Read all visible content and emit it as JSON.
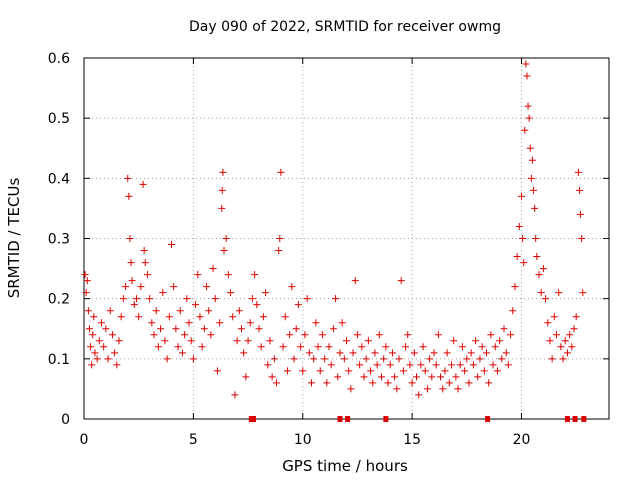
{
  "chart_data": {
    "type": "scatter",
    "title": "Day 090 of 2022, SRMTID for receiver owmg",
    "xlabel": "GPS time / hours",
    "ylabel": "SRMTID / TECUs",
    "xlim": [
      0,
      24
    ],
    "ylim": [
      0,
      0.6
    ],
    "xticks": [
      0,
      5,
      10,
      15,
      20
    ],
    "xtick_labels": [
      "0",
      "5",
      "10",
      "15",
      "20"
    ],
    "yticks": [
      0,
      0.1,
      0.2,
      0.3,
      0.4,
      0.5,
      0.6
    ],
    "ytick_labels": [
      "0",
      "0.1",
      "0.2",
      "0.3",
      "0.4",
      "0.5",
      "0.6"
    ],
    "grid": true,
    "marker": "+",
    "color": "#dd0000",
    "series": [
      {
        "name": "SRMTID",
        "points": [
          [
            0.05,
            0.24
          ],
          [
            0.1,
            0.21
          ],
          [
            0.15,
            0.23
          ],
          [
            0.2,
            0.18
          ],
          [
            0.25,
            0.15
          ],
          [
            0.3,
            0.12
          ],
          [
            0.35,
            0.09
          ],
          [
            0.4,
            0.14
          ],
          [
            0.45,
            0.17
          ],
          [
            0.5,
            0.11
          ],
          [
            0.6,
            0.1
          ],
          [
            0.7,
            0.13
          ],
          [
            0.8,
            0.16
          ],
          [
            0.9,
            0.12
          ],
          [
            1.0,
            0.15
          ],
          [
            1.1,
            0.1
          ],
          [
            1.2,
            0.18
          ],
          [
            1.3,
            0.14
          ],
          [
            1.4,
            0.11
          ],
          [
            1.5,
            0.09
          ],
          [
            1.6,
            0.13
          ],
          [
            1.7,
            0.17
          ],
          [
            1.8,
            0.2
          ],
          [
            1.9,
            0.22
          ],
          [
            2.0,
            0.4
          ],
          [
            2.05,
            0.37
          ],
          [
            2.1,
            0.3
          ],
          [
            2.15,
            0.26
          ],
          [
            2.2,
            0.23
          ],
          [
            2.3,
            0.19
          ],
          [
            2.4,
            0.2
          ],
          [
            2.5,
            0.17
          ],
          [
            2.6,
            0.22
          ],
          [
            2.7,
            0.39
          ],
          [
            2.75,
            0.28
          ],
          [
            2.8,
            0.26
          ],
          [
            2.9,
            0.24
          ],
          [
            3.0,
            0.2
          ],
          [
            3.1,
            0.16
          ],
          [
            3.2,
            0.14
          ],
          [
            3.3,
            0.18
          ],
          [
            3.4,
            0.12
          ],
          [
            3.5,
            0.15
          ],
          [
            3.6,
            0.21
          ],
          [
            3.7,
            0.13
          ],
          [
            3.8,
            0.1
          ],
          [
            3.9,
            0.17
          ],
          [
            4.0,
            0.29
          ],
          [
            4.1,
            0.22
          ],
          [
            4.2,
            0.15
          ],
          [
            4.3,
            0.12
          ],
          [
            4.4,
            0.18
          ],
          [
            4.5,
            0.11
          ],
          [
            4.6,
            0.14
          ],
          [
            4.7,
            0.2
          ],
          [
            4.8,
            0.16
          ],
          [
            4.9,
            0.13
          ],
          [
            5.0,
            0.1
          ],
          [
            5.1,
            0.19
          ],
          [
            5.2,
            0.24
          ],
          [
            5.3,
            0.17
          ],
          [
            5.4,
            0.12
          ],
          [
            5.5,
            0.15
          ],
          [
            5.6,
            0.22
          ],
          [
            5.7,
            0.18
          ],
          [
            5.8,
            0.14
          ],
          [
            5.9,
            0.25
          ],
          [
            6.0,
            0.2
          ],
          [
            6.1,
            0.08
          ],
          [
            6.2,
            0.16
          ],
          [
            6.3,
            0.35
          ],
          [
            6.32,
            0.38
          ],
          [
            6.35,
            0.41
          ],
          [
            6.4,
            0.28
          ],
          [
            6.5,
            0.3
          ],
          [
            6.6,
            0.24
          ],
          [
            6.7,
            0.21
          ],
          [
            6.8,
            0.17
          ],
          [
            6.9,
            0.04
          ],
          [
            7.0,
            0.13
          ],
          [
            7.1,
            0.18
          ],
          [
            7.2,
            0.15
          ],
          [
            7.3,
            0.11
          ],
          [
            7.4,
            0.07
          ],
          [
            7.5,
            0.13
          ],
          [
            7.6,
            0.16
          ],
          [
            7.7,
            0.2
          ],
          [
            7.8,
            0.24
          ],
          [
            7.9,
            0.19
          ],
          [
            8.0,
            0.15
          ],
          [
            8.1,
            0.12
          ],
          [
            8.2,
            0.17
          ],
          [
            8.3,
            0.21
          ],
          [
            8.4,
            0.09
          ],
          [
            8.5,
            0.13
          ],
          [
            8.6,
            0.07
          ],
          [
            8.7,
            0.1
          ],
          [
            8.8,
            0.06
          ],
          [
            8.9,
            0.28
          ],
          [
            8.95,
            0.3
          ],
          [
            9.0,
            0.41
          ],
          [
            9.1,
            0.12
          ],
          [
            9.2,
            0.17
          ],
          [
            9.3,
            0.08
          ],
          [
            9.4,
            0.14
          ],
          [
            9.5,
            0.22
          ],
          [
            9.6,
            0.1
          ],
          [
            9.7,
            0.15
          ],
          [
            9.8,
            0.19
          ],
          [
            9.9,
            0.12
          ],
          [
            10.0,
            0.08
          ],
          [
            10.1,
            0.14
          ],
          [
            10.2,
            0.2
          ],
          [
            10.3,
            0.11
          ],
          [
            10.4,
            0.06
          ],
          [
            10.5,
            0.1
          ],
          [
            10.6,
            0.16
          ],
          [
            10.7,
            0.12
          ],
          [
            10.8,
            0.08
          ],
          [
            10.9,
            0.14
          ],
          [
            11.0,
            0.1
          ],
          [
            11.1,
            0.06
          ],
          [
            11.2,
            0.12
          ],
          [
            11.3,
            0.09
          ],
          [
            11.4,
            0.15
          ],
          [
            11.5,
            0.2
          ],
          [
            11.6,
            0.07
          ],
          [
            11.7,
            0.11
          ],
          [
            11.8,
            0.16
          ],
          [
            11.9,
            0.1
          ],
          [
            12.0,
            0.13
          ],
          [
            12.1,
            0.08
          ],
          [
            12.2,
            0.05
          ],
          [
            12.3,
            0.11
          ],
          [
            12.4,
            0.23
          ],
          [
            12.5,
            0.14
          ],
          [
            12.6,
            0.09
          ],
          [
            12.7,
            0.12
          ],
          [
            12.8,
            0.07
          ],
          [
            12.9,
            0.1
          ],
          [
            13.0,
            0.13
          ],
          [
            13.1,
            0.08
          ],
          [
            13.2,
            0.06
          ],
          [
            13.3,
            0.11
          ],
          [
            13.4,
            0.09
          ],
          [
            13.5,
            0.14
          ],
          [
            13.6,
            0.07
          ],
          [
            13.7,
            0.1
          ],
          [
            13.8,
            0.12
          ],
          [
            13.9,
            0.06
          ],
          [
            14.0,
            0.09
          ],
          [
            14.1,
            0.11
          ],
          [
            14.2,
            0.07
          ],
          [
            14.3,
            0.05
          ],
          [
            14.4,
            0.1
          ],
          [
            14.5,
            0.23
          ],
          [
            14.6,
            0.08
          ],
          [
            14.7,
            0.12
          ],
          [
            14.8,
            0.14
          ],
          [
            14.9,
            0.09
          ],
          [
            15.0,
            0.06
          ],
          [
            15.1,
            0.11
          ],
          [
            15.2,
            0.07
          ],
          [
            15.3,
            0.04
          ],
          [
            15.4,
            0.09
          ],
          [
            15.5,
            0.12
          ],
          [
            15.6,
            0.08
          ],
          [
            15.7,
            0.05
          ],
          [
            15.8,
            0.1
          ],
          [
            15.9,
            0.07
          ],
          [
            16.0,
            0.11
          ],
          [
            16.1,
            0.09
          ],
          [
            16.2,
            0.14
          ],
          [
            16.3,
            0.07
          ],
          [
            16.4,
            0.05
          ],
          [
            16.5,
            0.08
          ],
          [
            16.6,
            0.11
          ],
          [
            16.7,
            0.06
          ],
          [
            16.8,
            0.09
          ],
          [
            16.9,
            0.13
          ],
          [
            17.0,
            0.07
          ],
          [
            17.1,
            0.05
          ],
          [
            17.2,
            0.09
          ],
          [
            17.3,
            0.12
          ],
          [
            17.4,
            0.08
          ],
          [
            17.5,
            0.1
          ],
          [
            17.6,
            0.06
          ],
          [
            17.7,
            0.11
          ],
          [
            17.8,
            0.09
          ],
          [
            17.9,
            0.13
          ],
          [
            18.0,
            0.07
          ],
          [
            18.1,
            0.1
          ],
          [
            18.2,
            0.12
          ],
          [
            18.3,
            0.08
          ],
          [
            18.4,
            0.11
          ],
          [
            18.5,
            0.06
          ],
          [
            18.6,
            0.14
          ],
          [
            18.7,
            0.09
          ],
          [
            18.8,
            0.12
          ],
          [
            18.9,
            0.08
          ],
          [
            19.0,
            0.13
          ],
          [
            19.1,
            0.1
          ],
          [
            19.2,
            0.15
          ],
          [
            19.3,
            0.11
          ],
          [
            19.4,
            0.09
          ],
          [
            19.5,
            0.14
          ],
          [
            19.6,
            0.18
          ],
          [
            19.7,
            0.22
          ],
          [
            19.8,
            0.27
          ],
          [
            19.9,
            0.32
          ],
          [
            20.0,
            0.37
          ],
          [
            20.05,
            0.3
          ],
          [
            20.1,
            0.26
          ],
          [
            20.15,
            0.48
          ],
          [
            20.2,
            0.59
          ],
          [
            20.25,
            0.57
          ],
          [
            20.3,
            0.52
          ],
          [
            20.35,
            0.5
          ],
          [
            20.4,
            0.45
          ],
          [
            20.45,
            0.4
          ],
          [
            20.5,
            0.43
          ],
          [
            20.55,
            0.38
          ],
          [
            20.6,
            0.35
          ],
          [
            20.65,
            0.3
          ],
          [
            20.7,
            0.27
          ],
          [
            20.8,
            0.24
          ],
          [
            20.9,
            0.21
          ],
          [
            21.0,
            0.25
          ],
          [
            21.1,
            0.2
          ],
          [
            21.2,
            0.16
          ],
          [
            21.3,
            0.13
          ],
          [
            21.4,
            0.1
          ],
          [
            21.5,
            0.17
          ],
          [
            21.6,
            0.14
          ],
          [
            21.7,
            0.21
          ],
          [
            21.8,
            0.12
          ],
          [
            21.9,
            0.1
          ],
          [
            22.0,
            0.13
          ],
          [
            22.1,
            0.11
          ],
          [
            22.2,
            0.14
          ],
          [
            22.3,
            0.12
          ],
          [
            22.4,
            0.15
          ],
          [
            22.5,
            0.17
          ],
          [
            22.6,
            0.41
          ],
          [
            22.65,
            0.38
          ],
          [
            22.7,
            0.34
          ],
          [
            22.75,
            0.3
          ],
          [
            22.8,
            0.21
          ]
        ]
      }
    ],
    "gap_markers_x": [
      7.65,
      7.75,
      11.7,
      12.05,
      13.8,
      18.45,
      22.1,
      22.45,
      22.85
    ]
  }
}
